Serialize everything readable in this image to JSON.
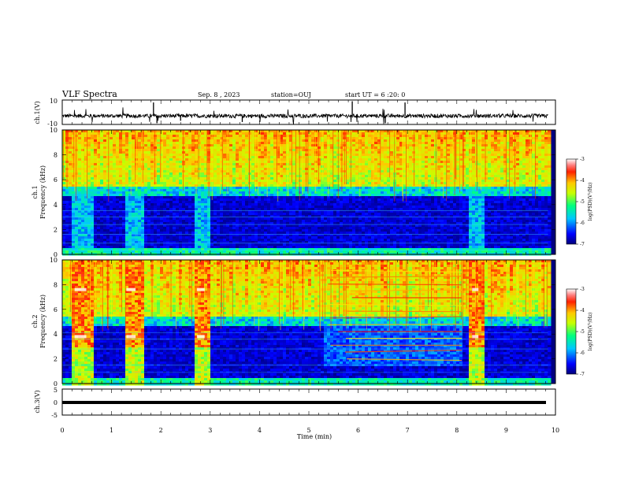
{
  "header": {
    "title": "VLF Spectra",
    "date": "Sep. 8 , 2023",
    "station": "station=OUJ",
    "start": "start UT = 6 :20: 0"
  },
  "chart_data": [
    {
      "type": "line",
      "ylabel": "ch.1(V)",
      "ylim": [
        -10,
        10
      ],
      "yticks": [
        "10",
        "-10"
      ],
      "x": "time (min), 0 to 9.85",
      "description_level": "noisy waveform around -3 V with spikes"
    },
    {
      "type": "heatmap",
      "ylabel_channel": "ch.1",
      "ylabel": "Frequency (kHz)",
      "xlim": [
        0,
        9.85
      ],
      "ylim": [
        0,
        10
      ],
      "yticks": [
        "0",
        "2",
        "4",
        "6",
        "8",
        "10"
      ],
      "colorbar": {
        "label": "log(PSD)(V²/Hz)",
        "ticks": [
          "-3",
          "-4",
          "-5",
          "-6",
          "-7"
        ],
        "range": [
          -7,
          -3
        ]
      },
      "bursts_min": [
        [
          0.17,
          0.6
        ],
        [
          1.22,
          1.6
        ],
        [
          2.65,
          3.0
        ],
        [
          8.23,
          8.55
        ]
      ]
    },
    {
      "type": "heatmap",
      "ylabel_channel": "ch.2",
      "ylabel": "Frequency (kHz)",
      "xlim": [
        0,
        9.85
      ],
      "ylim": [
        0,
        10
      ],
      "yticks": [
        "0",
        "2",
        "4",
        "6",
        "8",
        "10"
      ],
      "colorbar": {
        "label": "log(PSD)(V²/Hz)",
        "ticks": [
          "-3",
          "-4",
          "-5",
          "-6",
          "-7"
        ],
        "range": [
          -7,
          -3
        ]
      },
      "bursts_min": [
        [
          0.17,
          0.6
        ],
        [
          1.22,
          1.6
        ],
        [
          2.65,
          3.0
        ],
        [
          8.23,
          8.55
        ]
      ],
      "tone_interval_min": [
        5.3,
        8.1
      ]
    },
    {
      "type": "line",
      "ylabel": "ch.3(V)",
      "ylim": [
        -5,
        5
      ],
      "yticks": [
        "5",
        "0",
        "-5"
      ],
      "level": -0.8
    }
  ],
  "xaxis": {
    "label": "Time (min)",
    "ticks": [
      "0",
      "1",
      "2",
      "3",
      "4",
      "5",
      "6",
      "7",
      "8",
      "9",
      "10"
    ],
    "range": [
      0,
      10
    ]
  }
}
